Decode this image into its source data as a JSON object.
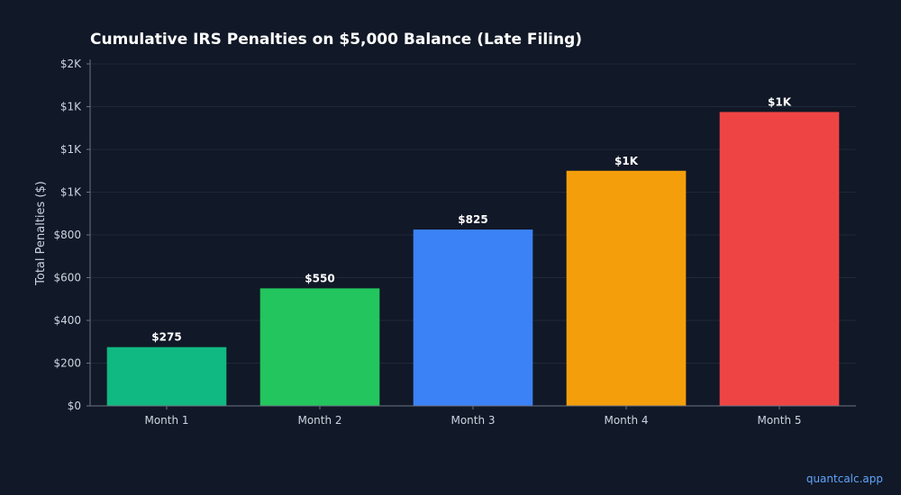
{
  "chart_data": {
    "type": "bar",
    "title": "Cumulative IRS Penalties on $5,000 Balance (Late Filing)",
    "xlabel": "",
    "ylabel": "Total Penalties ($)",
    "categories": [
      "Month 1",
      "Month 2",
      "Month 3",
      "Month 4",
      "Month 5"
    ],
    "values": [
      275,
      550,
      825,
      1100,
      1375
    ],
    "data_labels": [
      "$275",
      "$550",
      "$825",
      "$1K",
      "$1K"
    ],
    "bar_colors": [
      "#10b981",
      "#22c55e",
      "#3b82f6",
      "#f59e0b",
      "#ef4444"
    ],
    "ylim": [
      0,
      1600
    ],
    "yticks": [
      0,
      200,
      400,
      600,
      800,
      1000,
      1200,
      1400,
      1600
    ],
    "ytick_labels": [
      "$0",
      "$200",
      "$400",
      "$600",
      "$800",
      "$1K",
      "$1K",
      "$1K",
      "$2K"
    ],
    "grid": true,
    "legend": "none"
  },
  "colors": {
    "background": "#111827",
    "grid": "#1f2937",
    "axis": "#6b7280",
    "text": "#cbd5e1",
    "title": "#ffffff",
    "watermark": "#60a5fa"
  },
  "watermark": "quantcalc.app"
}
